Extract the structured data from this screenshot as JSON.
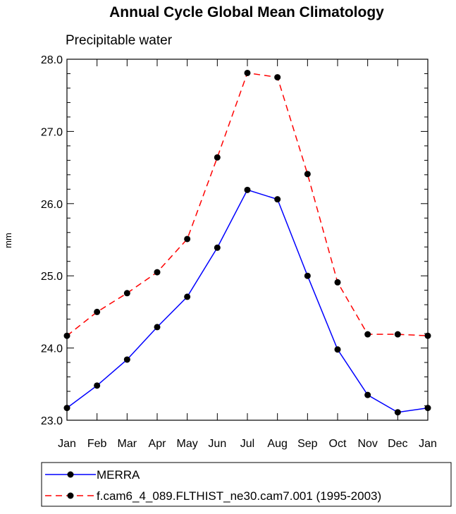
{
  "chart_data": {
    "type": "line",
    "title": "Annual Cycle Global Mean Climatology",
    "subtitle": "Precipitable water",
    "xlabel": "",
    "ylabel": "mm",
    "categories": [
      "Jan",
      "Feb",
      "Mar",
      "Apr",
      "May",
      "Jun",
      "Jul",
      "Aug",
      "Sep",
      "Oct",
      "Nov",
      "Dec",
      "Jan"
    ],
    "ylim": [
      23.0,
      28.0
    ],
    "yticks": [
      "23.0",
      "24.0",
      "25.0",
      "26.0",
      "27.0",
      "28.0"
    ],
    "grid": false,
    "legend_position": "bottom",
    "series": [
      {
        "name": "MERRA",
        "color": "#0000ff",
        "line_style": "solid",
        "values": [
          23.17,
          23.48,
          23.84,
          24.29,
          24.71,
          25.39,
          26.19,
          26.06,
          25.0,
          23.98,
          23.35,
          23.11,
          23.17
        ]
      },
      {
        "name": "f.cam6_4_089.FLTHIST_ne30.cam7.001 (1995-2003)",
        "color": "#ff0000",
        "line_style": "dashed",
        "values": [
          24.17,
          24.5,
          24.76,
          25.05,
          25.51,
          26.64,
          27.81,
          27.75,
          26.41,
          24.91,
          24.19,
          24.19,
          24.17
        ]
      }
    ]
  }
}
